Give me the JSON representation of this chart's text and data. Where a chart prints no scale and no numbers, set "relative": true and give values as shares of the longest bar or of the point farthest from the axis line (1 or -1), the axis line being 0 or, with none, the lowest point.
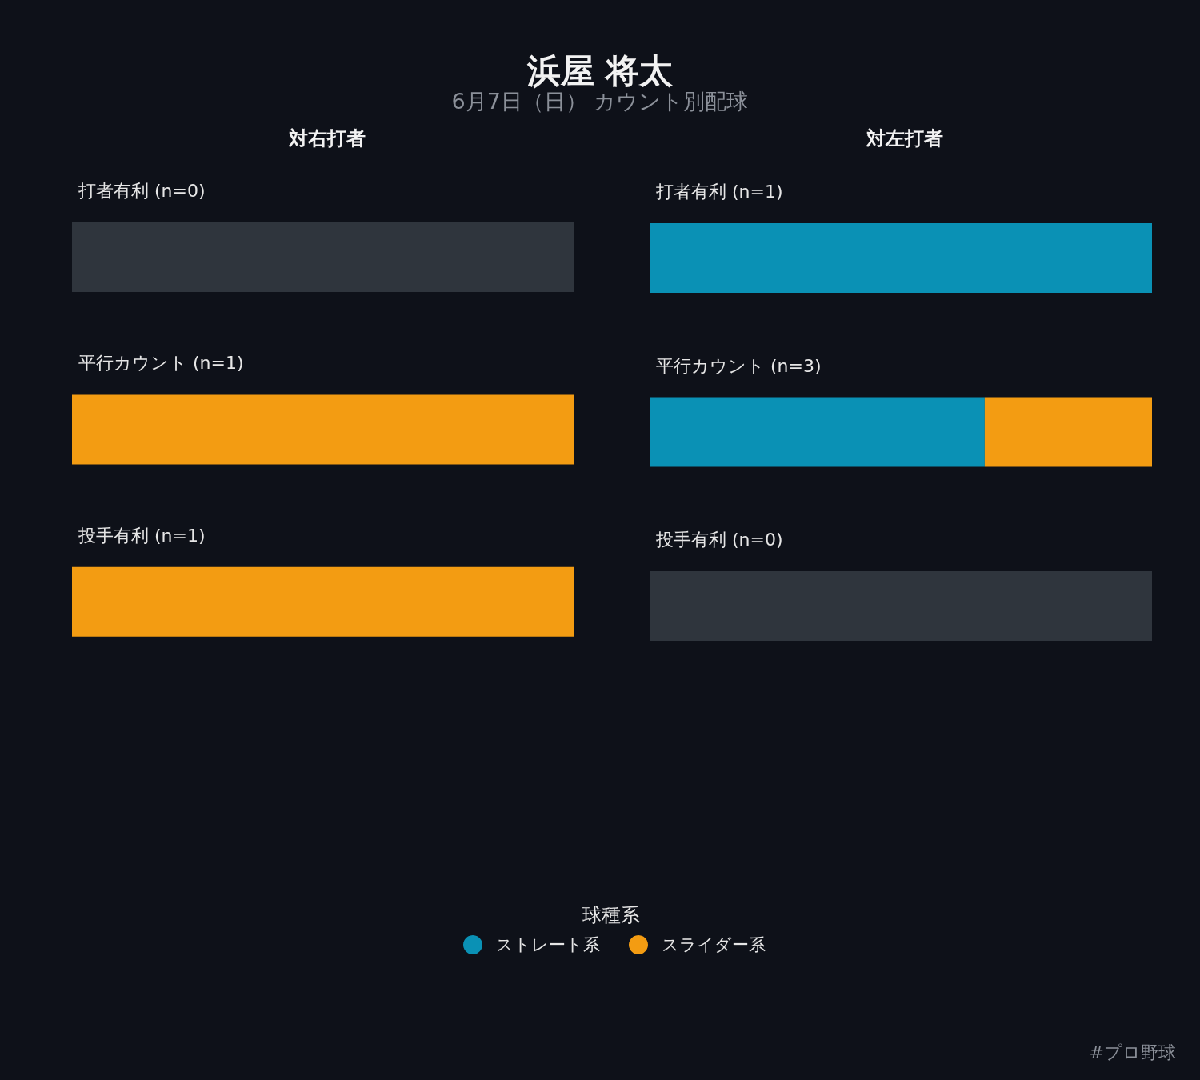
{
  "chart_data": [
    {
      "type": "other",
      "title": "浜屋 将太",
      "subtitle": "6月7日（日） カウント別配球"
    },
    {
      "type": "bar",
      "orientation": "horizontal",
      "stacked": true,
      "relative": true,
      "title": "対右打者",
      "categories": [
        "打者有利 (n=0)",
        "平行カウント (n=1)",
        "投手有利 (n=1)"
      ],
      "series": [
        {
          "color": "#0a91b5",
          "values": [
            null,
            0,
            0
          ]
        },
        {
          "color": "#f39c12",
          "values": [
            null,
            1,
            1
          ]
        },
        {
          "color": "#2f353d",
          "values": [
            1,
            null,
            null
          ]
        }
      ],
      "legend": false
    },
    {
      "type": "bar",
      "orientation": "horizontal",
      "stacked": true,
      "relative": true,
      "title": "対左打者",
      "categories": [
        "打者有利 (n=1)",
        "平行カウント (n=3)",
        "投手有利 (n=0)"
      ],
      "series": [
        {
          "name": "ストレート系",
          "color": "#0a91b5",
          "values": [
            1,
            0.667,
            null
          ]
        },
        {
          "name": "スライダー系",
          "color": "#f39c12",
          "values": [
            0,
            0.333,
            null
          ]
        },
        {
          "color": "#2f353d",
          "values": [
            null,
            null,
            1
          ]
        }
      ],
      "legend": "bottom",
      "legend_title": "球種系",
      "annotations": [
        "#プロ野球"
      ]
    }
  ]
}
